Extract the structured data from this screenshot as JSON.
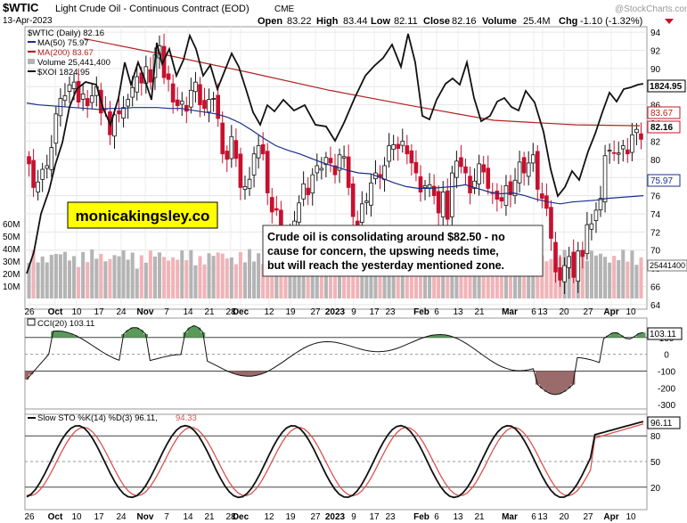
{
  "header": {
    "symbol": "$WTIC",
    "name": "Light Crude Oil - Continuous Contract (EOD)",
    "exchange": "CME",
    "date": "13-Apr-2023",
    "open_label": "Open",
    "open": "83.22",
    "high_label": "High",
    "high": "83.44",
    "low_label": "Low",
    "low": "82.11",
    "close_label": "Close",
    "close": "82.16",
    "volume_label": "Volume",
    "volume": "25.4M",
    "chg_label": "Chg",
    "chg": "-1.10 (-1.32%)",
    "watermark": "@StockCharts.com"
  },
  "legend": {
    "main": "$WTIC (Daily) 82.16",
    "ma50": "MA(50) 75.97",
    "ma200": "MA(200) 83.67",
    "volume": "Volume 25,441,400",
    "xoi": "$XOI 1824.95"
  },
  "annotation": {
    "brand": "monicakingsley.co",
    "comment_lines": [
      "Crude oil is consolidating around $82.50 - no",
      "cause for concern, the upswing needs time,",
      "but will reach the yesterday mentioned zone."
    ]
  },
  "price_badges": {
    "xoi": "1824.95",
    "ma200": "83.67",
    "close": "82.16",
    "ma50": "75.97",
    "volume": "25441400"
  },
  "cci_panel": {
    "title": "CCI(20) 103.11",
    "badge": "103.11"
  },
  "sto_panel": {
    "title_main": "Slow STO %K(14) %D(3) 96.11,",
    "title_d": "94.33",
    "badge": "96.11"
  },
  "colors": {
    "up": "#111111",
    "down": "#c8102e",
    "ma50": "#1a2e8a",
    "ma200": "#b22222",
    "xoi": "#111111",
    "vol_up": "#b4b4b4",
    "vol_down": "#f1b3b7",
    "cci_pos": "#5a9a5a",
    "cci_neg": "#9b6a6a",
    "brand_bg": "#ffff00",
    "sto_k": "#111111",
    "sto_d": "#d9534f"
  },
  "chart_data": {
    "type": "candlestick",
    "x_ticks": [
      "26",
      "Oct",
      "10",
      "17",
      "24",
      "Nov",
      "7",
      "14",
      "21",
      "28",
      "Dec",
      "12",
      "19",
      "27",
      "2023",
      "9",
      "17",
      "23",
      "Feb",
      "6",
      "13",
      "21",
      "Mar",
      "6",
      "13",
      "20",
      "27",
      "Apr",
      "10"
    ],
    "bold_ticks": [
      "Oct",
      "Nov",
      "Dec",
      "2023",
      "Feb",
      "Mar",
      "Apr"
    ],
    "price": {
      "ylim": [
        63.5,
        94.6
      ],
      "y_ticks": [
        64,
        66,
        68,
        70,
        72,
        74,
        76,
        78,
        80,
        82,
        84,
        86,
        88,
        90,
        92,
        94
      ],
      "closes": [
        79.5,
        76.9,
        77.5,
        78.9,
        79.3,
        81.3,
        85.0,
        86.7,
        87.0,
        88.2,
        88.5,
        86.3,
        87.2,
        85.9,
        87.0,
        88.0,
        85.1,
        85.5,
        82.7,
        84.9,
        85.0,
        85.7,
        86.6,
        87.9,
        89.1,
        88.4,
        90.2,
        88.5,
        91.5,
        92.5,
        89.0,
        88.8,
        86.3,
        85.9,
        86.4,
        85.3,
        87.6,
        88.5,
        86.0,
        85.6,
        86.6,
        86.7,
        84.5,
        80.6,
        80.0,
        82.5,
        80.1,
        76.9,
        77.0,
        77.8,
        80.6,
        81.5,
        80.6,
        76.3,
        74.2,
        74.4,
        72.0,
        71.0,
        71.5,
        73.2,
        75.2,
        77.3,
        76.1,
        78.3,
        79.3,
        79.0,
        80.2,
        79.6,
        78.3,
        80.5,
        80.3,
        76.9,
        73.7,
        72.8,
        75.1,
        75.4,
        77.4,
        78.5,
        78.0,
        79.3,
        81.5,
        81.6,
        81.2,
        82.0,
        80.6,
        79.6,
        78.5,
        76.4,
        77.1,
        77.2,
        76.0,
        74.1,
        76.4,
        73.4,
        78.5,
        79.8,
        79.2,
        78.5,
        76.3,
        77.6,
        79.5,
        78.6,
        76.8,
        76.3,
        75.6,
        75.4,
        77.1,
        76.1,
        77.7,
        79.7,
        78.5,
        79.6,
        80.5,
        76.7,
        75.7,
        74.6,
        71.3,
        67.6,
        66.7,
        68.3,
        69.3,
        67.0,
        69.9,
        69.3,
        72.8,
        72.9,
        74.4,
        75.7,
        80.4,
        81.0,
        80.7,
        80.7,
        81.5,
        80.6,
        82.7,
        83.3,
        82.2
      ],
      "ma50": [
        86.2,
        86.0,
        85.9,
        85.8,
        85.7,
        85.6,
        85.5,
        85.6,
        85.6,
        85.7,
        85.7,
        85.7,
        85.6,
        85.6,
        85.4,
        85.2,
        85.0,
        84.6,
        84.0,
        83.2,
        82.3,
        81.5,
        81.0,
        80.6,
        80.1,
        79.6,
        79.2,
        78.8,
        78.5,
        78.4,
        77.9,
        77.4,
        77.0,
        76.8,
        76.8,
        76.9,
        77.0,
        77.2,
        76.8,
        76.4,
        76.2,
        76.3,
        76.0,
        75.6,
        75.3,
        75.1,
        75.3,
        75.4,
        75.5,
        75.7,
        75.8,
        75.9,
        76.0
      ],
      "ma200": [
        null,
        null,
        null,
        null,
        null,
        null,
        null,
        null,
        null,
        null,
        null,
        null,
        null,
        null,
        null,
        null,
        null,
        null,
        null,
        null,
        null,
        null,
        null,
        null,
        null,
        null,
        null,
        null,
        null,
        null,
        null,
        null,
        null,
        null,
        null,
        null,
        null,
        null,
        null,
        null,
        null,
        null,
        null,
        null,
        null,
        null,
        null,
        null,
        null,
        null,
        null,
        null,
        null,
        null,
        null,
        null,
        null,
        null,
        null,
        null,
        null,
        null,
        null,
        null,
        null,
        null,
        null,
        null,
        null,
        null,
        null,
        null,
        null,
        null,
        null,
        null,
        null,
        null,
        null,
        null,
        null,
        null,
        null,
        null,
        null,
        null,
        null,
        null,
        null,
        null,
        null,
        null,
        null,
        null,
        null,
        null,
        null,
        null,
        null,
        null,
        null,
        null,
        null,
        null,
        null,
        null,
        null,
        null,
        null,
        null,
        null,
        null,
        null,
        null,
        null,
        null,
        null,
        null,
        null,
        null,
        null,
        null,
        null,
        null,
        null,
        null,
        null,
        null,
        null,
        null,
        null,
        null,
        null,
        null,
        null,
        null,
        null,
        null,
        null,
        null
      ],
      "ma200_path_x": [
        94,
        186,
        278,
        370,
        462,
        554,
        646,
        718
      ],
      "ma200_path_y": [
        93.3,
        91.5,
        89.6,
        87.6,
        85.9,
        84.3,
        83.8,
        83.7
      ],
      "xoi_badge_value": 1824.95
    },
    "volume": {
      "y_ticks": [
        "60M",
        "50M",
        "40M",
        "30M",
        "20M",
        "10M"
      ],
      "y_tick_values": [
        60,
        50,
        40,
        30,
        20,
        10
      ]
    },
    "cci": {
      "ylim": [
        -320,
        210
      ],
      "y_ticks": [
        100,
        0,
        -100,
        -200,
        -300
      ],
      "last": 103.11
    },
    "sto": {
      "ylim": [
        0,
        100
      ],
      "y_ticks": [
        80,
        50,
        20
      ],
      "k_last": 96.11,
      "d_last": 94.33
    }
  }
}
